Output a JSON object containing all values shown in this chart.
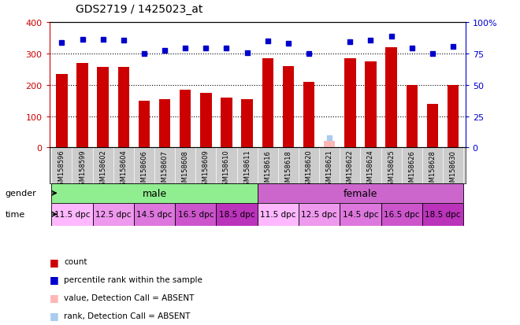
{
  "title": "GDS2719 / 1425023_at",
  "samples": [
    "GSM158596",
    "GSM158599",
    "GSM158602",
    "GSM158604",
    "GSM158606",
    "GSM158607",
    "GSM158608",
    "GSM158609",
    "GSM158610",
    "GSM158611",
    "GSM158616",
    "GSM158618",
    "GSM158620",
    "GSM158621",
    "GSM158622",
    "GSM158624",
    "GSM158625",
    "GSM158626",
    "GSM158628",
    "GSM158630"
  ],
  "bar_values": [
    235,
    270,
    258,
    258,
    150,
    153,
    184,
    174,
    160,
    155,
    285,
    260,
    210,
    20,
    285,
    275,
    320,
    200,
    140,
    200
  ],
  "rank_values_pct": [
    83.75,
    86.25,
    86.0,
    85.5,
    75.0,
    77.5,
    79.0,
    79.0,
    79.25,
    75.25,
    85.0,
    83.25,
    75.0,
    8.0,
    84.25,
    85.5,
    89.0,
    79.0,
    75.0,
    80.5
  ],
  "absent_bar": [
    false,
    false,
    false,
    false,
    false,
    false,
    false,
    false,
    false,
    false,
    false,
    false,
    false,
    true,
    false,
    false,
    false,
    false,
    false,
    false
  ],
  "absent_rank": [
    false,
    false,
    false,
    false,
    false,
    false,
    false,
    false,
    false,
    false,
    false,
    false,
    false,
    true,
    false,
    false,
    false,
    false,
    false,
    false
  ],
  "bar_color": "#CC0000",
  "absent_bar_color": "#FFB6B6",
  "rank_color": "#0000CC",
  "absent_rank_color": "#AACCEE",
  "ylim_left": [
    0,
    400
  ],
  "ylim_right": [
    0,
    100
  ],
  "yticks_left": [
    0,
    100,
    200,
    300,
    400
  ],
  "yticks_right": [
    0,
    25,
    50,
    75,
    100
  ],
  "ytick_labels_right": [
    "0",
    "25",
    "50",
    "75",
    "100%"
  ],
  "grid_values": [
    100,
    200,
    300
  ],
  "gender_groups": [
    {
      "label": "male",
      "start": 0,
      "end": 9,
      "color": "#90EE90"
    },
    {
      "label": "female",
      "start": 10,
      "end": 19,
      "color": "#CC66CC"
    }
  ],
  "time_groups": [
    {
      "label": "11.5 dpc",
      "start": 0,
      "end": 1,
      "color": "#FFB8FF"
    },
    {
      "label": "12.5 dpc",
      "start": 2,
      "end": 3,
      "color": "#EE99EE"
    },
    {
      "label": "14.5 dpc",
      "start": 4,
      "end": 5,
      "color": "#DD77DD"
    },
    {
      "label": "16.5 dpc",
      "start": 6,
      "end": 7,
      "color": "#CC55CC"
    },
    {
      "label": "18.5 dpc",
      "start": 8,
      "end": 9,
      "color": "#BB33BB"
    },
    {
      "label": "11.5 dpc",
      "start": 10,
      "end": 11,
      "color": "#FFB8FF"
    },
    {
      "label": "12.5 dpc",
      "start": 12,
      "end": 13,
      "color": "#EE99EE"
    },
    {
      "label": "14.5 dpc",
      "start": 14,
      "end": 15,
      "color": "#DD77DD"
    },
    {
      "label": "16.5 dpc",
      "start": 16,
      "end": 17,
      "color": "#CC55CC"
    },
    {
      "label": "18.5 dpc",
      "start": 18,
      "end": 19,
      "color": "#BB33BB"
    }
  ],
  "xticklabel_bg": "#CCCCCC",
  "label_fontsize": 7.5,
  "bar_width": 0.55
}
